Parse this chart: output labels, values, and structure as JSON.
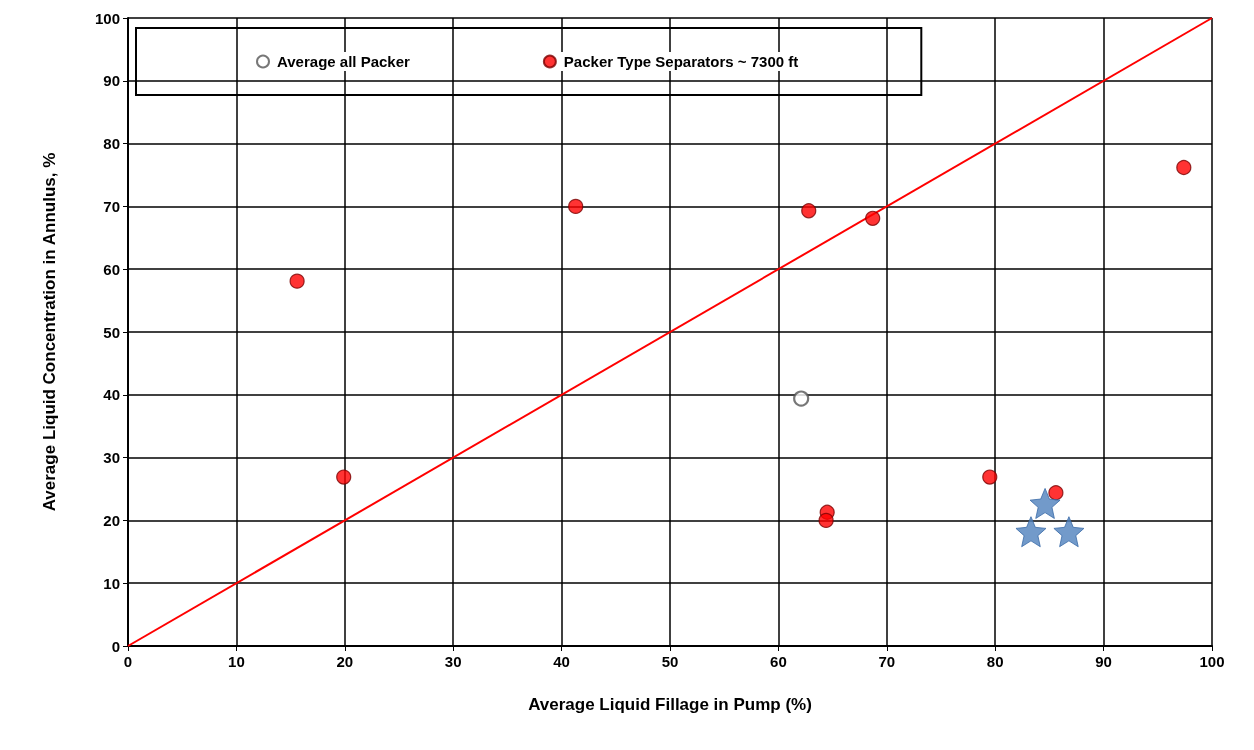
{
  "chart_data": {
    "type": "scatter",
    "xlabel": "Average Liquid Fillage in Pump (%)",
    "ylabel": "Average Liquid Concentration in Annulus, %",
    "xlim": [
      0,
      100
    ],
    "ylim": [
      0,
      100
    ],
    "xticks": [
      0,
      10,
      20,
      30,
      40,
      50,
      60,
      70,
      80,
      90,
      100
    ],
    "yticks": [
      0,
      10,
      20,
      30,
      40,
      50,
      60,
      70,
      80,
      90,
      100
    ],
    "grid": true,
    "legend": "top",
    "marker": "circle",
    "series": [
      {
        "name": "Average all Packer",
        "color": "#ffffff",
        "x": [
          62.1
        ],
        "values": [
          39.4
        ]
      },
      {
        "name": "Packer Type Separators ~ 7300 ft",
        "color": "#ff0000",
        "x": [
          15.6,
          19.9,
          41.3,
          62.8,
          68.7,
          64.5,
          64.4,
          79.5,
          85.6,
          97.4
        ],
        "values": [
          58.1,
          26.9,
          70.0,
          69.3,
          68.1,
          21.3,
          20.0,
          26.9,
          24.4,
          76.2
        ]
      },
      {
        "color": "#4f81bd",
        "marker": "star",
        "x": [
          84.6,
          83.3,
          86.8
        ],
        "values": [
          22.7,
          18.2,
          18.2
        ]
      },
      {
        "type": "line",
        "color": "#ff0000",
        "marker": "none",
        "x": [
          0,
          100
        ],
        "values": [
          0,
          100
        ]
      }
    ]
  }
}
